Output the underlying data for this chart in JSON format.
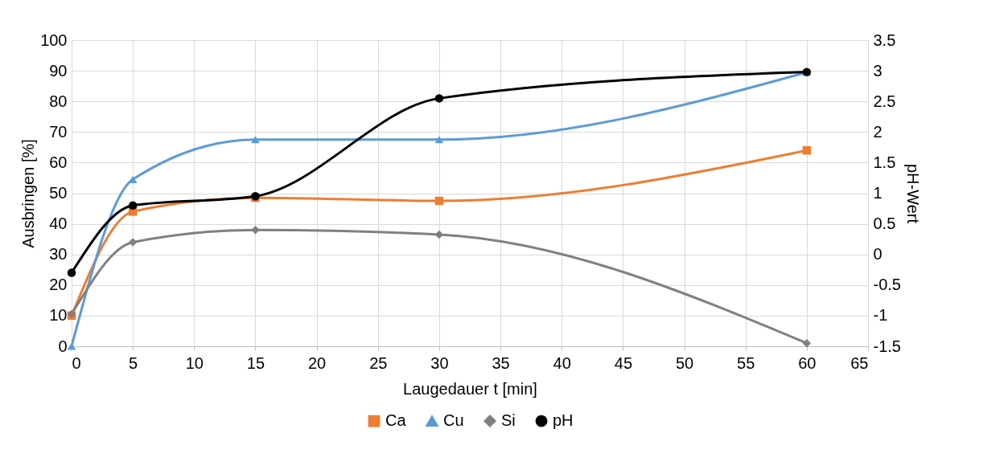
{
  "chart_data": {
    "type": "line",
    "xlabel": "Laugedauer t [min]",
    "ylabel": "Ausbringen [%]",
    "y2label": "pH-Wert",
    "x": [
      0,
      5,
      15,
      30,
      60
    ],
    "xlim": [
      0,
      65
    ],
    "xticks": [
      0,
      5,
      10,
      15,
      20,
      25,
      30,
      35,
      40,
      45,
      50,
      55,
      60,
      65
    ],
    "ylim": [
      0,
      100
    ],
    "yticks": [
      0,
      10,
      20,
      30,
      40,
      50,
      60,
      70,
      80,
      90,
      100
    ],
    "y2lim": [
      -1.5,
      3.5
    ],
    "y2ticks": [
      -1.5,
      -1,
      -0.5,
      0,
      0.5,
      1,
      1.5,
      2,
      2.5,
      3,
      3.5
    ],
    "grid": true,
    "legend": "bottom",
    "series": [
      {
        "name": "Ca",
        "color": "#ed7d31",
        "marker": "square",
        "values": [
          10,
          44,
          48.5,
          47.5,
          64
        ]
      },
      {
        "name": "Cu",
        "color": "#5b9bd5",
        "marker": "triangle",
        "values": [
          0,
          54.5,
          67.5,
          67.5,
          89.5
        ]
      },
      {
        "name": "Si",
        "color": "#808080",
        "marker": "diamond",
        "values": [
          10.5,
          34,
          38,
          36.5,
          1
        ]
      },
      {
        "name": "pH",
        "color": "#000000",
        "marker": "circle",
        "axis": "y2",
        "values": [
          -0.3,
          0.8,
          0.95,
          2.55,
          2.98
        ]
      }
    ]
  }
}
